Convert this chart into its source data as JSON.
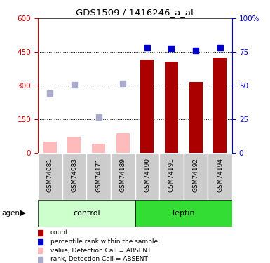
{
  "title": "GDS1509 / 1416246_a_at",
  "samples": [
    "GSM74081",
    "GSM74083",
    "GSM74171",
    "GSM74189",
    "GSM74190",
    "GSM74191",
    "GSM74192",
    "GSM74194"
  ],
  "groups": [
    "control",
    "control",
    "control",
    "control",
    "leptin",
    "leptin",
    "leptin",
    "leptin"
  ],
  "bar_values_red": [
    0,
    0,
    0,
    0,
    415,
    405,
    315,
    425
  ],
  "bar_values_pink": [
    50,
    70,
    40,
    85,
    0,
    0,
    0,
    0
  ],
  "dot_values_blue": [
    0,
    0,
    0,
    0,
    470,
    467,
    458,
    470
  ],
  "dot_values_lightblue": [
    265,
    302,
    158,
    310,
    0,
    0,
    0,
    0
  ],
  "ylim": [
    0,
    600
  ],
  "y_left_ticks": [
    0,
    150,
    300,
    450,
    600
  ],
  "y_right_labels": [
    "0",
    "25",
    "50",
    "75",
    "100%"
  ],
  "left_axis_color": "#cc0000",
  "right_axis_color": "#0000cc",
  "bar_color_red": "#aa0000",
  "bar_color_pink": "#ffbbbb",
  "dot_color_blue": "#0000cc",
  "dot_color_lightblue": "#aaaacc",
  "control_bg_light": "#ccffcc",
  "leptin_bg": "#33dd33",
  "label_bg_gray": "#cccccc",
  "white": "#ffffff"
}
